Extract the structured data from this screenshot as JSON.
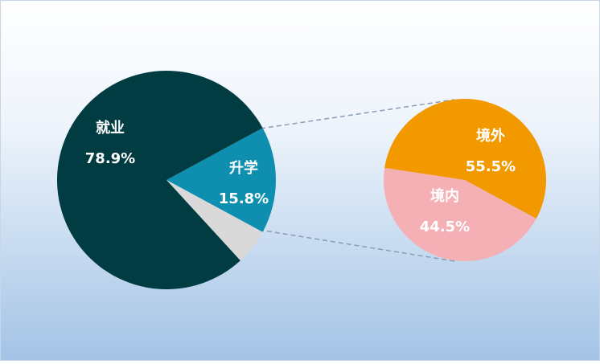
{
  "chart_data": [
    {
      "type": "pie",
      "categories": [
        "升学",
        null,
        "就业"
      ],
      "values": [
        15.8,
        5.3,
        78.9
      ],
      "value_labels": [
        "15.8%",
        null,
        "78.9%"
      ],
      "colors": [
        "#0f8fb0",
        "#d9d9d9",
        "#003c41"
      ]
    },
    {
      "type": "pie",
      "categories": [
        "境内",
        "境外"
      ],
      "values": [
        44.5,
        55.5
      ],
      "value_labels": [
        "44.5%",
        "55.5%"
      ],
      "colors": [
        "#f4b0b4",
        "#f29900"
      ]
    }
  ]
}
